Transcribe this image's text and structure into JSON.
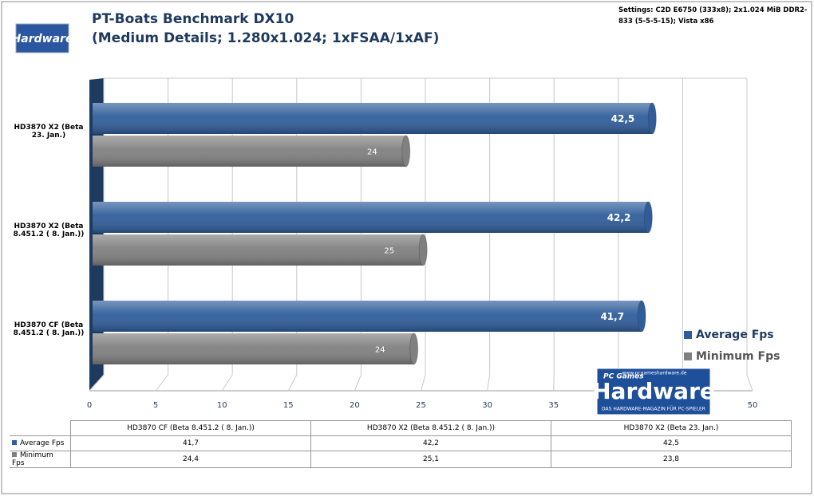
{
  "chart_data": {
    "type": "bar",
    "orientation": "horizontal",
    "title": "PT-Boats Benchmark DX10",
    "subtitle": "(Medium Details; 1.280x1.024; 1xFSAA/1xAF)",
    "note": "Settings: C2D E6750 (333x8); 2x1.024 MiB DDR2-833 (5-5-5-15); Vista x86",
    "categories": [
      "HD3870 CF (Beta 8.451.2 ( 8. Jan.))",
      "HD3870 X2 (Beta 8.451.2 ( 8. Jan.))",
      "HD3870 X2 (Beta 23. Jan.)"
    ],
    "series": [
      {
        "name": "Average Fps",
        "color": "#2f5d9b",
        "values": [
          41.7,
          42.2,
          42.5
        ],
        "value_labels": [
          "41,7",
          "42,2",
          "42,5"
        ],
        "table_labels": [
          "41,7",
          "42,2",
          "42,5"
        ]
      },
      {
        "name": "Minimum Fps",
        "color": "#808080",
        "values": [
          24.4,
          25.1,
          23.8
        ],
        "value_labels": [
          "24",
          "25",
          "24"
        ],
        "table_labels": [
          "24,4",
          "25,1",
          "23,8"
        ]
      }
    ],
    "xlim": [
      0,
      50
    ],
    "xticks": [
      0,
      5,
      10,
      15,
      20,
      25,
      30,
      35,
      40,
      45,
      50
    ],
    "grid": true,
    "legend": "right"
  },
  "logos": {
    "small": "Hardware",
    "big_top": "PC Games",
    "big_title": "Hardware",
    "big_url": "www.pcgameshardware.de",
    "big_tagline": "DAS HARDWARE-MAGAZIN FÜR PC-SPIELER"
  }
}
